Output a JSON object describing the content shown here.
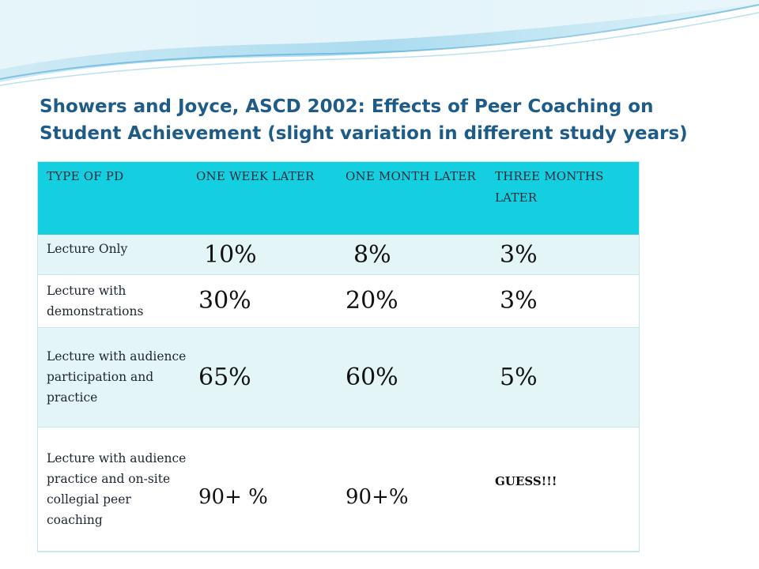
{
  "title": "Showers and Joyce, ASCD 2002: Effects of Peer Coaching on Student Achievement (slight variation in different study years)",
  "table": {
    "headers": [
      "TYPE OF PD",
      "ONE WEEK LATER",
      "ONE MONTH LATER",
      "THREE MONTHS LATER"
    ],
    "rows": [
      {
        "label": "Lecture Only",
        "week": "10%",
        "month": "8%",
        "three": "3%"
      },
      {
        "label": "Lecture with demonstrations",
        "week": "30%",
        "month": "20%",
        "three": "3%"
      },
      {
        "label": "Lecture with audience participation and practice",
        "week": "65%",
        "month": "60%",
        "three": "5%"
      },
      {
        "label": "Lecture with audience practice and on-site collegial peer coaching",
        "week": "90+ %",
        "month": "90+%",
        "three": "GUESS!!!"
      }
    ]
  },
  "colors": {
    "header_bg": "#13cfe0",
    "title": "#1e5c87",
    "band": "#e4f5f7"
  }
}
